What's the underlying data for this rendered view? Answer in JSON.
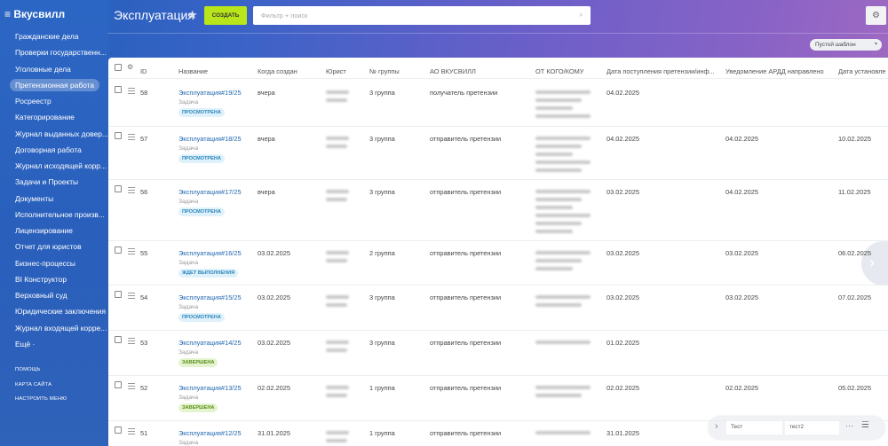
{
  "sidebar": {
    "logo": "Вкусвилл",
    "menu": [
      "Гражданские дела",
      "Проверки государственн...",
      "Уголовные дела",
      "Претензионная работа",
      "Росреестр",
      "Категорирование",
      "Журнал выданных довер...",
      "Договорная работа",
      "Журнал исходящей корр...",
      "Задачи и Проекты",
      "Документы",
      "Исполнительное произв...",
      "Лицензирование",
      "Отчет для юристов",
      "Бизнес-процессы",
      "BI Конструктор",
      "Верховный суд",
      "Юридические заключения",
      "Журнал входящей корре...",
      "Ещё ·"
    ],
    "footer": [
      "ПОМОЩЬ",
      "КАРТА САЙТА",
      "НАСТРОИТЬ МЕНЮ"
    ]
  },
  "header": {
    "title": "Эксплуатация",
    "create_button": "СОЗДАТЬ",
    "search_placeholder": "Фильтр + поиск",
    "template_button": "Пустой шаблон"
  },
  "table": {
    "columns": [
      "ID",
      "Название",
      "Когда создан",
      "Юрист",
      "№ группы",
      "АО ВКУСВИЛЛ",
      "ОТ КОГО/КОМУ",
      "Дата поступления претензии/инф...",
      "Уведомление АРДД направлено",
      "Дата установле"
    ],
    "rows": [
      {
        "id": 58,
        "name": "Эксплуатация#19/25",
        "kind": "Задача",
        "status": "ПРОСМОТРЕНА",
        "created": "вчера",
        "group": "3 группа",
        "role": "получатель претензии",
        "received": "04.02.2025",
        "notified": null,
        "established": null
      },
      {
        "id": 57,
        "name": "Эксплуатация#18/25",
        "kind": "Задача",
        "status": "ПРОСМОТРЕНА",
        "created": "вчера",
        "group": "3 группа",
        "role": "отправитель претензии",
        "received": "04.02.2025",
        "notified": "04.02.2025",
        "established": "10.02.2025"
      },
      {
        "id": 56,
        "name": "Эксплуатация#17/25",
        "kind": "Задача",
        "status": "ПРОСМОТРЕНА",
        "created": "вчера",
        "group": "3 группа",
        "role": "отправитель претензии",
        "received": "03.02.2025",
        "notified": "04.02.2025",
        "established": "11.02.2025"
      },
      {
        "id": 55,
        "name": "Эксплуатация#16/25",
        "kind": "Задача",
        "status": "ЖДЕТ ВЫПОЛНЕНИЯ",
        "created": "03.02.2025",
        "group": "2 группа",
        "role": "отправитель претензии",
        "received": "03.02.2025",
        "notified": "03.02.2025",
        "established": "06.02.2025"
      },
      {
        "id": 54,
        "name": "Эксплуатация#15/25",
        "kind": "Задача",
        "status": "ПРОСМОТРЕНА",
        "created": "03.02.2025",
        "group": "3 группа",
        "role": "отправитель претензии",
        "received": "03.02.2025",
        "notified": "03.02.2025",
        "established": "07.02.2025"
      },
      {
        "id": 53,
        "name": "Эксплуатация#14/25",
        "kind": "Задача",
        "status": "ЗАВЕРШЕНА",
        "created": "03.02.2025",
        "group": "3 группа",
        "role": "отправитель претензии",
        "received": "01.02.2025",
        "notified": null,
        "established": null
      },
      {
        "id": 52,
        "name": "Эксплуатация#13/25",
        "kind": "Задача",
        "status": "ЗАВЕРШЕНА",
        "created": "02.02.2025",
        "group": "1 группа",
        "role": "отправитель претензии",
        "received": "02.02.2025",
        "notified": "02.02.2025",
        "established": "05.02.2025"
      },
      {
        "id": 51,
        "name": "Эксплуатация#12/25",
        "kind": "Задача",
        "status": null,
        "created": "31.01.2025",
        "group": "1 группа",
        "role": "отправитель претензии",
        "received": "31.01.2025",
        "notified": null,
        "established": null
      }
    ]
  },
  "bottom_panel": {
    "inputs": [
      "Тест",
      "тест2"
    ]
  }
}
